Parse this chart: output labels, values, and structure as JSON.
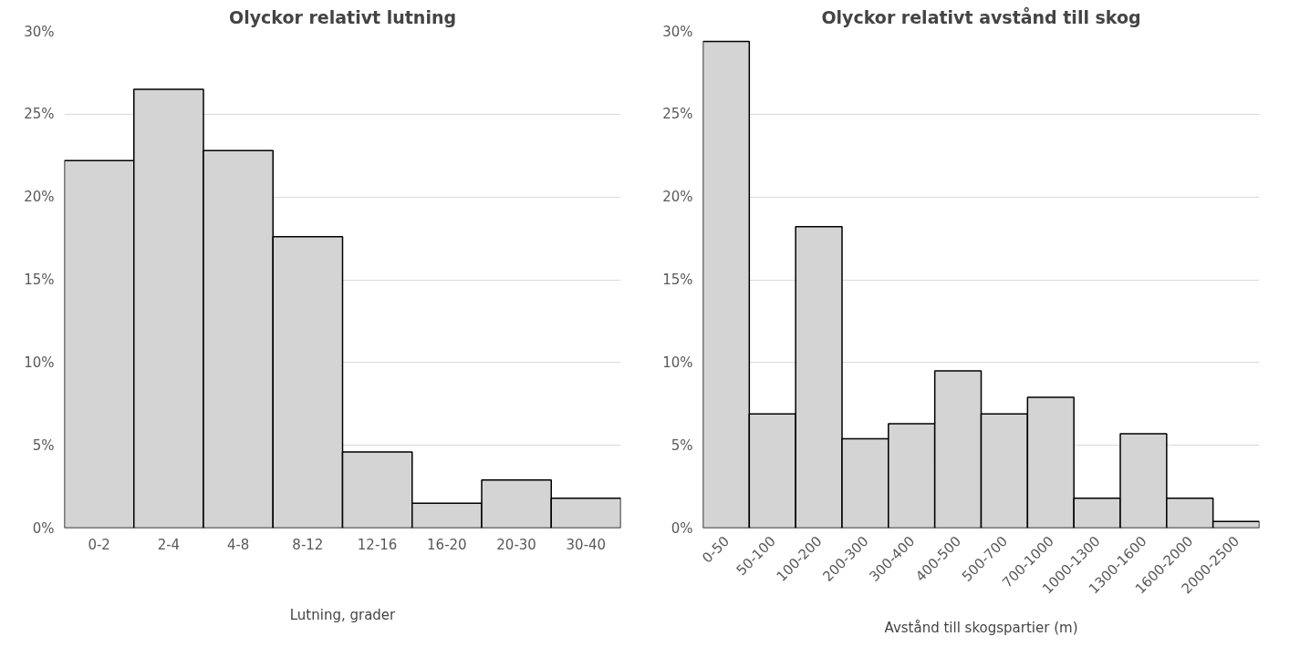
{
  "chart_data": [
    {
      "type": "bar",
      "title": "Olyckor relativt lutning",
      "xlabel": "Lutning, grader",
      "categories": [
        "0-2",
        "2-4",
        "4-8",
        "8-12",
        "12-16",
        "16-20",
        "20-30",
        "30-40"
      ],
      "values": [
        22.2,
        26.5,
        22.8,
        17.6,
        4.6,
        1.5,
        2.9,
        1.8
      ],
      "color": "#d4d4d4",
      "ylim": [
        0,
        30
      ],
      "yticks": [
        {
          "value": 0,
          "label": "0%"
        },
        {
          "value": 5,
          "label": "5%"
        },
        {
          "value": 10,
          "label": "10%"
        },
        {
          "value": 15,
          "label": "15%"
        },
        {
          "value": 20,
          "label": "20%"
        },
        {
          "value": 25,
          "label": "25%"
        },
        {
          "value": 30,
          "label": "30%"
        }
      ],
      "grid": "y"
    },
    {
      "type": "bar",
      "title": "Olyckor relativt avstånd till skog",
      "xlabel": "Avstånd till skogspartier (m)",
      "categories": [
        "0-50",
        "50-100",
        "100-200",
        "200-300",
        "300-400",
        "400-500",
        "500-700",
        "700-1000",
        "1000-1300",
        "1300-1600",
        "1600-2000",
        "2000-2500"
      ],
      "values": [
        29.4,
        6.9,
        18.2,
        5.4,
        6.3,
        9.5,
        6.9,
        7.9,
        1.8,
        5.7,
        1.8,
        0.4
      ],
      "color": "#d4d4d4",
      "ylim": [
        0,
        30
      ],
      "yticks": [
        {
          "value": 0,
          "label": "0%"
        },
        {
          "value": 5,
          "label": "5%"
        },
        {
          "value": 10,
          "label": "10%"
        },
        {
          "value": 15,
          "label": "15%"
        },
        {
          "value": 20,
          "label": "20%"
        },
        {
          "value": 25,
          "label": "25%"
        },
        {
          "value": 30,
          "label": "30%"
        }
      ],
      "grid": "y"
    }
  ]
}
